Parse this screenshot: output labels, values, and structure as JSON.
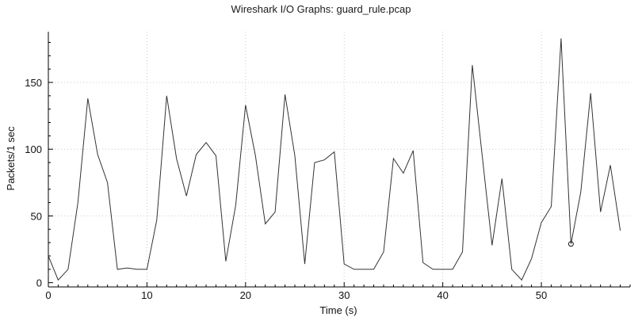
{
  "window": {
    "title": "Wireshark I/O Graphs: guard_rule.pcap"
  },
  "chart_data": {
    "type": "line",
    "title": "Wireshark I/O Graphs: guard_rule.pcap",
    "xlabel": "Time (s)",
    "ylabel": "Packets/1 sec",
    "xlim": [
      0,
      59
    ],
    "ylim": [
      -2,
      188
    ],
    "xticks": [
      0,
      10,
      20,
      30,
      40,
      50
    ],
    "yticks": [
      0,
      50,
      100,
      150
    ],
    "grid": true,
    "line_color": "#333333",
    "grid_color": "#c8c8c8",
    "marker": {
      "x": 53,
      "y": 29,
      "shape": "circle"
    },
    "series": [
      {
        "x": [
          0,
          1,
          2,
          3,
          4,
          5,
          6,
          7,
          8,
          9,
          10,
          11,
          12,
          13,
          14,
          15,
          16,
          17,
          18,
          19,
          20,
          21,
          22,
          23,
          24,
          25,
          26,
          27,
          28,
          29,
          30,
          31,
          32,
          33,
          34,
          35,
          36,
          37,
          38,
          39,
          40,
          41,
          42,
          43,
          44,
          45,
          46,
          47,
          48,
          49,
          50,
          51,
          52,
          53,
          54,
          55,
          56,
          57,
          58
        ],
        "values": [
          20,
          2,
          10,
          60,
          138,
          96,
          75,
          10,
          11,
          10,
          10,
          47,
          140,
          93,
          65,
          96,
          105,
          95,
          16,
          58,
          133,
          95,
          44,
          53,
          141,
          95,
          14,
          90,
          92,
          98,
          14,
          10,
          10,
          10,
          23,
          93,
          82,
          99,
          15,
          10,
          10,
          10,
          23,
          163,
          95,
          28,
          78,
          10,
          2,
          18,
          45,
          57,
          183,
          29,
          68,
          142,
          53,
          88,
          39
        ]
      }
    ]
  }
}
